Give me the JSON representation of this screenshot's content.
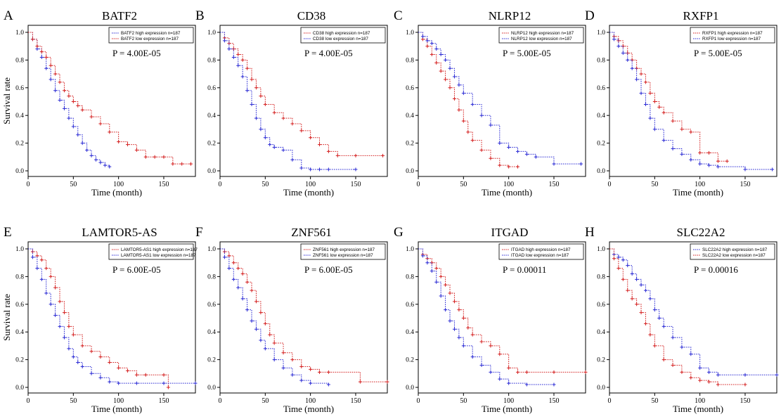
{
  "figure": {
    "y_axis_label": "Survival rate",
    "x_axis_label": "Time (month)",
    "colors": {
      "high_default": "#d42020",
      "low_default": "#2a2ad4",
      "frame": "#000000"
    }
  },
  "chart_data": [
    {
      "panel": "A",
      "type": "line",
      "title": "BATF2",
      "xlabel": "Time (month)",
      "ylabel": "Survival rate",
      "xlim": [
        0,
        185
      ],
      "ylim": [
        0,
        1
      ],
      "xticks": [
        0,
        50,
        100,
        150
      ],
      "yticks": [
        0.0,
        0.2,
        0.4,
        0.6,
        0.8,
        1.0
      ],
      "p_value": "P = 4.00E-05",
      "legend_position": "top-right",
      "series": [
        {
          "name": "BATF2 high expression n=187",
          "color": "#2a2ad4",
          "x": [
            0,
            5,
            10,
            15,
            20,
            25,
            30,
            35,
            40,
            45,
            50,
            55,
            60,
            65,
            70,
            75,
            80,
            85,
            90
          ],
          "y": [
            1.0,
            0.95,
            0.88,
            0.82,
            0.74,
            0.66,
            0.58,
            0.51,
            0.45,
            0.38,
            0.32,
            0.26,
            0.2,
            0.15,
            0.11,
            0.08,
            0.06,
            0.04,
            0.03
          ]
        },
        {
          "name": "BATF2  low expression n=187",
          "color": "#d42020",
          "x": [
            0,
            5,
            10,
            15,
            20,
            25,
            30,
            35,
            40,
            45,
            50,
            55,
            60,
            70,
            80,
            90,
            100,
            110,
            120,
            130,
            140,
            150,
            160,
            170,
            180
          ],
          "y": [
            1.0,
            0.95,
            0.9,
            0.86,
            0.82,
            0.76,
            0.7,
            0.64,
            0.58,
            0.54,
            0.5,
            0.47,
            0.44,
            0.39,
            0.34,
            0.28,
            0.21,
            0.19,
            0.15,
            0.1,
            0.1,
            0.1,
            0.05,
            0.05,
            0.05
          ]
        }
      ]
    },
    {
      "panel": "B",
      "type": "line",
      "title": "CD38",
      "xlabel": "Time (month)",
      "ylabel": "Survival rate",
      "xlim": [
        0,
        185
      ],
      "ylim": [
        0,
        1
      ],
      "xticks": [
        0,
        50,
        100,
        150
      ],
      "yticks": [
        0.0,
        0.2,
        0.4,
        0.6,
        0.8,
        1.0
      ],
      "p_value": "P = 4.00E-05",
      "legend_position": "top-right",
      "series": [
        {
          "name": "CD38 high expression n=187",
          "color": "#d42020",
          "x": [
            0,
            5,
            10,
            15,
            20,
            25,
            30,
            35,
            40,
            45,
            50,
            60,
            70,
            80,
            90,
            100,
            110,
            120,
            130,
            150,
            180
          ],
          "y": [
            1.0,
            0.96,
            0.92,
            0.88,
            0.84,
            0.8,
            0.74,
            0.66,
            0.6,
            0.54,
            0.48,
            0.42,
            0.38,
            0.34,
            0.29,
            0.24,
            0.19,
            0.14,
            0.11,
            0.11,
            0.11
          ]
        },
        {
          "name": "CD38  low expression n=187",
          "color": "#2a2ad4",
          "x": [
            0,
            5,
            10,
            15,
            20,
            25,
            30,
            35,
            40,
            45,
            50,
            55,
            60,
            70,
            80,
            90,
            100,
            110,
            120,
            150
          ],
          "y": [
            1.0,
            0.94,
            0.88,
            0.82,
            0.76,
            0.68,
            0.58,
            0.48,
            0.38,
            0.3,
            0.24,
            0.19,
            0.17,
            0.15,
            0.08,
            0.02,
            0.01,
            0.01,
            0.01,
            0.01
          ]
        }
      ]
    },
    {
      "panel": "C",
      "type": "line",
      "title": "NLRP12",
      "xlabel": "Time (month)",
      "ylabel": "Survival rate",
      "xlim": [
        0,
        185
      ],
      "ylim": [
        0,
        1
      ],
      "xticks": [
        0,
        50,
        100,
        150
      ],
      "yticks": [
        0.0,
        0.2,
        0.4,
        0.6,
        0.8,
        1.0
      ],
      "p_value": "P = 5.00E-05",
      "legend_position": "top-right",
      "series": [
        {
          "name": "NLRP12 high expression n=187",
          "color": "#d42020",
          "x": [
            0,
            5,
            10,
            15,
            20,
            25,
            30,
            35,
            40,
            45,
            50,
            55,
            60,
            70,
            80,
            90,
            100,
            110
          ],
          "y": [
            1.0,
            0.95,
            0.9,
            0.84,
            0.78,
            0.72,
            0.66,
            0.6,
            0.52,
            0.44,
            0.36,
            0.28,
            0.22,
            0.15,
            0.09,
            0.04,
            0.03,
            0.03
          ]
        },
        {
          "name": "NLRP12  low expression n=187",
          "color": "#2a2ad4",
          "x": [
            0,
            5,
            10,
            15,
            20,
            25,
            30,
            35,
            40,
            45,
            50,
            60,
            70,
            80,
            90,
            100,
            110,
            120,
            130,
            150,
            180
          ],
          "y": [
            1.0,
            0.97,
            0.94,
            0.92,
            0.88,
            0.84,
            0.8,
            0.74,
            0.68,
            0.62,
            0.56,
            0.48,
            0.4,
            0.33,
            0.2,
            0.17,
            0.14,
            0.12,
            0.1,
            0.05,
            0.05
          ]
        }
      ]
    },
    {
      "panel": "D",
      "type": "line",
      "title": "RXFP1",
      "xlabel": "Time (month)",
      "ylabel": "Survival rate",
      "xlim": [
        0,
        185
      ],
      "ylim": [
        0,
        1
      ],
      "xticks": [
        0,
        50,
        100,
        150
      ],
      "yticks": [
        0.0,
        0.2,
        0.4,
        0.6,
        0.8,
        1.0
      ],
      "p_value": "P = 5.00E-05",
      "legend_position": "top-right",
      "series": [
        {
          "name": "RXFP1 high expression n=187",
          "color": "#d42020",
          "x": [
            0,
            5,
            10,
            15,
            20,
            25,
            30,
            35,
            40,
            45,
            50,
            55,
            60,
            70,
            80,
            90,
            100,
            110,
            120,
            130
          ],
          "y": [
            1.0,
            0.97,
            0.94,
            0.9,
            0.85,
            0.8,
            0.74,
            0.7,
            0.64,
            0.56,
            0.5,
            0.46,
            0.42,
            0.36,
            0.3,
            0.28,
            0.13,
            0.13,
            0.07,
            0.07
          ]
        },
        {
          "name": "RXFP1  low expression n=187",
          "color": "#2a2ad4",
          "x": [
            0,
            5,
            10,
            15,
            20,
            25,
            30,
            35,
            40,
            45,
            50,
            60,
            70,
            80,
            90,
            100,
            110,
            120,
            150,
            180
          ],
          "y": [
            1.0,
            0.95,
            0.9,
            0.85,
            0.8,
            0.74,
            0.66,
            0.56,
            0.48,
            0.38,
            0.3,
            0.22,
            0.16,
            0.12,
            0.08,
            0.05,
            0.04,
            0.03,
            0.01,
            0.01
          ]
        }
      ]
    },
    {
      "panel": "E",
      "type": "line",
      "title": "LAMTOR5-AS",
      "xlabel": "Time (month)",
      "ylabel": "Survival rate",
      "xlim": [
        0,
        185
      ],
      "ylim": [
        0,
        1
      ],
      "xticks": [
        0,
        50,
        100,
        150
      ],
      "yticks": [
        0.0,
        0.2,
        0.4,
        0.6,
        0.8,
        1.0
      ],
      "p_value": "P = 6.00E-05",
      "legend_position": "top-right",
      "series": [
        {
          "name": "LAMTOR5-AS1 high expression n=187",
          "color": "#d42020",
          "x": [
            0,
            5,
            10,
            15,
            20,
            25,
            30,
            35,
            40,
            45,
            50,
            60,
            70,
            80,
            90,
            100,
            110,
            120,
            130,
            150,
            155
          ],
          "y": [
            1.0,
            0.98,
            0.95,
            0.92,
            0.86,
            0.8,
            0.72,
            0.62,
            0.54,
            0.44,
            0.38,
            0.3,
            0.26,
            0.22,
            0.18,
            0.14,
            0.12,
            0.09,
            0.09,
            0.09,
            0.0
          ]
        },
        {
          "name": "LAMTOR5-AS1  low expression n=187",
          "color": "#2a2ad4",
          "x": [
            0,
            5,
            10,
            15,
            20,
            25,
            30,
            35,
            40,
            45,
            50,
            55,
            60,
            70,
            80,
            90,
            100,
            120,
            150,
            185
          ],
          "y": [
            1.0,
            0.94,
            0.86,
            0.78,
            0.68,
            0.6,
            0.52,
            0.44,
            0.36,
            0.28,
            0.22,
            0.18,
            0.15,
            0.1,
            0.07,
            0.04,
            0.03,
            0.03,
            0.03,
            0.03
          ]
        }
      ]
    },
    {
      "panel": "F",
      "type": "line",
      "title": "ZNF561",
      "xlabel": "Time (month)",
      "ylabel": "Survival rate",
      "xlim": [
        0,
        185
      ],
      "ylim": [
        0,
        1
      ],
      "xticks": [
        0,
        50,
        100,
        150
      ],
      "yticks": [
        0.0,
        0.2,
        0.4,
        0.6,
        0.8,
        1.0
      ],
      "p_value": "P = 6.00E-05",
      "legend_position": "top-right",
      "series": [
        {
          "name": "ZNF561 high expression n=187",
          "color": "#d42020",
          "x": [
            0,
            5,
            10,
            15,
            20,
            25,
            30,
            35,
            40,
            45,
            50,
            55,
            60,
            70,
            80,
            90,
            100,
            110,
            120,
            155,
            185
          ],
          "y": [
            1.0,
            0.98,
            0.95,
            0.9,
            0.86,
            0.82,
            0.76,
            0.7,
            0.62,
            0.54,
            0.46,
            0.38,
            0.32,
            0.25,
            0.2,
            0.15,
            0.13,
            0.11,
            0.11,
            0.04,
            0.04
          ]
        },
        {
          "name": "ZNF561  low expression n=187",
          "color": "#2a2ad4",
          "x": [
            0,
            5,
            10,
            15,
            20,
            25,
            30,
            35,
            40,
            45,
            50,
            60,
            70,
            80,
            90,
            100,
            120
          ],
          "y": [
            1.0,
            0.94,
            0.86,
            0.78,
            0.72,
            0.64,
            0.56,
            0.48,
            0.42,
            0.34,
            0.28,
            0.2,
            0.14,
            0.09,
            0.05,
            0.03,
            0.02
          ]
        }
      ]
    },
    {
      "panel": "G",
      "type": "line",
      "title": "ITGAD",
      "xlabel": "Time (month)",
      "ylabel": "Survival rate",
      "xlim": [
        0,
        185
      ],
      "ylim": [
        0,
        1
      ],
      "xticks": [
        0,
        50,
        100,
        150
      ],
      "yticks": [
        0.0,
        0.2,
        0.4,
        0.6,
        0.8,
        1.0
      ],
      "p_value": "P = 0.00011",
      "legend_position": "top-right",
      "series": [
        {
          "name": "ITGAD high expression n=187",
          "color": "#d42020",
          "x": [
            0,
            5,
            10,
            15,
            20,
            25,
            30,
            35,
            40,
            45,
            50,
            55,
            60,
            70,
            80,
            90,
            100,
            110,
            120,
            150,
            185
          ],
          "y": [
            1.0,
            0.96,
            0.93,
            0.9,
            0.86,
            0.8,
            0.74,
            0.68,
            0.62,
            0.56,
            0.5,
            0.43,
            0.38,
            0.33,
            0.3,
            0.24,
            0.14,
            0.11,
            0.11,
            0.11,
            0.11
          ]
        },
        {
          "name": "ITGAD  low expression n=187",
          "color": "#2a2ad4",
          "x": [
            0,
            5,
            10,
            15,
            20,
            25,
            30,
            35,
            40,
            45,
            50,
            60,
            70,
            80,
            90,
            100,
            120,
            150
          ],
          "y": [
            1.0,
            0.95,
            0.9,
            0.84,
            0.76,
            0.66,
            0.56,
            0.48,
            0.42,
            0.36,
            0.3,
            0.22,
            0.16,
            0.11,
            0.06,
            0.03,
            0.02,
            0.02
          ]
        }
      ]
    },
    {
      "panel": "H",
      "type": "line",
      "title": "SLC22A2",
      "xlabel": "Time (month)",
      "ylabel": "Survival rate",
      "xlim": [
        0,
        185
      ],
      "ylim": [
        0,
        1
      ],
      "xticks": [
        0,
        50,
        100,
        150
      ],
      "yticks": [
        0.0,
        0.2,
        0.4,
        0.6,
        0.8,
        1.0
      ],
      "p_value": "P = 0.00016",
      "legend_position": "top-right",
      "series": [
        {
          "name": "SLC22A2 high expression n=187",
          "color": "#2a2ad4",
          "x": [
            0,
            5,
            10,
            15,
            20,
            25,
            30,
            35,
            40,
            45,
            50,
            55,
            60,
            70,
            80,
            90,
            100,
            110,
            120,
            150,
            185
          ],
          "y": [
            1.0,
            0.96,
            0.94,
            0.92,
            0.88,
            0.82,
            0.78,
            0.74,
            0.7,
            0.64,
            0.56,
            0.5,
            0.44,
            0.36,
            0.29,
            0.24,
            0.14,
            0.11,
            0.09,
            0.09,
            0.09
          ]
        },
        {
          "name": "SLC22A2  low expression n=187",
          "color": "#d42020",
          "x": [
            0,
            5,
            10,
            15,
            20,
            25,
            30,
            35,
            40,
            45,
            50,
            60,
            70,
            80,
            90,
            100,
            110,
            120,
            150
          ],
          "y": [
            1.0,
            0.93,
            0.86,
            0.78,
            0.7,
            0.64,
            0.6,
            0.54,
            0.46,
            0.38,
            0.3,
            0.2,
            0.16,
            0.11,
            0.07,
            0.05,
            0.04,
            0.02,
            0.02
          ]
        }
      ]
    }
  ]
}
